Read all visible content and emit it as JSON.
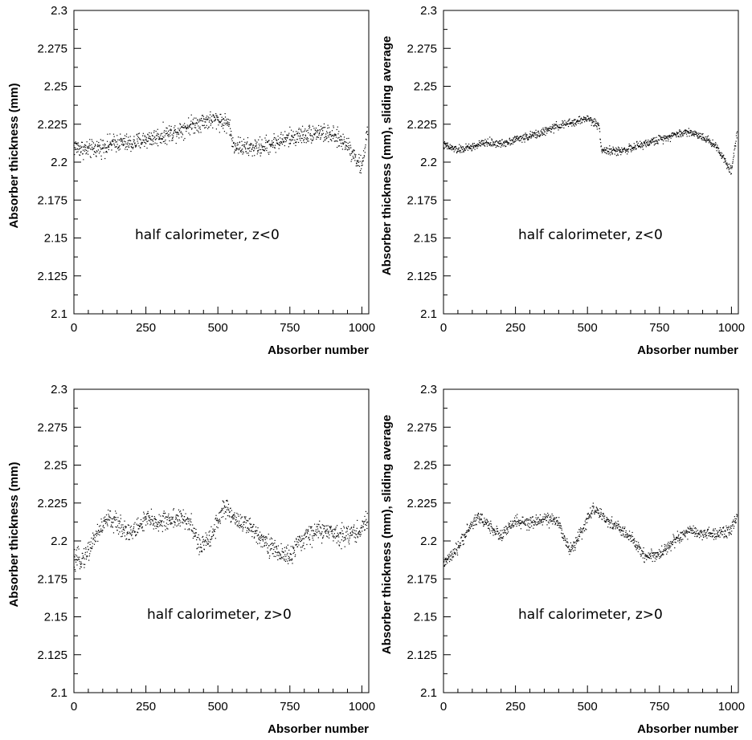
{
  "chart_data": [
    {
      "type": "scatter",
      "xlabel": "Absorber number",
      "ylabel": "Absorber thickness (mm)",
      "annotation": "half calorimeter, z<0",
      "xlim": [
        0,
        1024
      ],
      "ylim": [
        2.1,
        2.3
      ],
      "xticks": [
        "0",
        "250",
        "500",
        "750",
        "1000"
      ],
      "yticks": [
        "2.1",
        "2.125",
        "2.15",
        "2.175",
        "2.2",
        "2.225",
        "2.25",
        "2.275",
        "2.3"
      ],
      "x": [
        0,
        50,
        100,
        150,
        200,
        250,
        300,
        350,
        400,
        450,
        500,
        540,
        550,
        600,
        650,
        700,
        750,
        800,
        850,
        900,
        950,
        1000,
        1020
      ],
      "y": [
        2.21,
        2.208,
        2.21,
        2.213,
        2.212,
        2.215,
        2.217,
        2.22,
        2.224,
        2.227,
        2.228,
        2.225,
        2.212,
        2.209,
        2.21,
        2.213,
        2.216,
        2.218,
        2.22,
        2.217,
        2.212,
        2.196,
        2.222
      ],
      "series": [
        {
          "name": "",
          "color": "#000000",
          "spread": 0.009
        }
      ],
      "grid": false
    },
    {
      "type": "scatter",
      "xlabel": "Absorber number",
      "ylabel": "Absorber thickness (mm), sliding average",
      "annotation": "half calorimeter, z<0",
      "xlim": [
        0,
        1024
      ],
      "ylim": [
        2.1,
        2.3
      ],
      "xticks": [
        "0",
        "250",
        "500",
        "750",
        "1000"
      ],
      "yticks": [
        "2.1",
        "2.125",
        "2.15",
        "2.175",
        "2.2",
        "2.225",
        "2.25",
        "2.275",
        "2.3"
      ],
      "x": [
        0,
        50,
        100,
        150,
        200,
        250,
        300,
        350,
        400,
        450,
        500,
        540,
        550,
        600,
        650,
        700,
        750,
        800,
        850,
        900,
        950,
        1000,
        1020
      ],
      "y": [
        2.211,
        2.208,
        2.21,
        2.213,
        2.212,
        2.215,
        2.217,
        2.22,
        2.224,
        2.226,
        2.229,
        2.224,
        2.208,
        2.207,
        2.209,
        2.212,
        2.215,
        2.218,
        2.22,
        2.217,
        2.21,
        2.194,
        2.22
      ],
      "series": [
        {
          "name": "",
          "color": "#000000",
          "spread": 0.004
        }
      ],
      "grid": false
    },
    {
      "type": "scatter",
      "xlabel": "Absorber number",
      "ylabel": "Absorber thickness (mm)",
      "annotation": "half calorimeter, z>0",
      "xlim": [
        0,
        1024
      ],
      "ylim": [
        2.1,
        2.3
      ],
      "xticks": [
        "0",
        "250",
        "500",
        "750",
        "1000"
      ],
      "yticks": [
        "2.1",
        "2.125",
        "2.15",
        "2.175",
        "2.2",
        "2.225",
        "2.25",
        "2.275",
        "2.3"
      ],
      "x": [
        0,
        40,
        80,
        120,
        160,
        200,
        250,
        300,
        350,
        400,
        440,
        480,
        520,
        560,
        600,
        650,
        700,
        750,
        800,
        850,
        900,
        950,
        1000,
        1020
      ],
      "y": [
        2.186,
        2.19,
        2.205,
        2.215,
        2.21,
        2.205,
        2.214,
        2.212,
        2.215,
        2.213,
        2.195,
        2.205,
        2.222,
        2.215,
        2.21,
        2.203,
        2.193,
        2.19,
        2.202,
        2.207,
        2.205,
        2.204,
        2.207,
        2.215
      ],
      "series": [
        {
          "name": "",
          "color": "#000000",
          "spread": 0.01
        }
      ],
      "grid": false
    },
    {
      "type": "scatter",
      "xlabel": "Absorber number",
      "ylabel": "Absorber thickness (mm), sliding average",
      "annotation": "half calorimeter, z>0",
      "xlim": [
        0,
        1024
      ],
      "ylim": [
        2.1,
        2.3
      ],
      "xticks": [
        "0",
        "250",
        "500",
        "750",
        "1000"
      ],
      "yticks": [
        "2.1",
        "2.125",
        "2.15",
        "2.175",
        "2.2",
        "2.225",
        "2.25",
        "2.275",
        "2.3"
      ],
      "x": [
        0,
        40,
        80,
        120,
        160,
        200,
        250,
        300,
        350,
        400,
        440,
        480,
        520,
        560,
        600,
        650,
        700,
        750,
        800,
        850,
        900,
        950,
        1000,
        1020
      ],
      "y": [
        2.185,
        2.192,
        2.206,
        2.216,
        2.21,
        2.203,
        2.213,
        2.211,
        2.215,
        2.212,
        2.193,
        2.206,
        2.222,
        2.214,
        2.21,
        2.202,
        2.19,
        2.191,
        2.2,
        2.206,
        2.205,
        2.204,
        2.208,
        2.216
      ],
      "series": [
        {
          "name": "",
          "color": "#000000",
          "spread": 0.006
        }
      ],
      "grid": false
    }
  ]
}
